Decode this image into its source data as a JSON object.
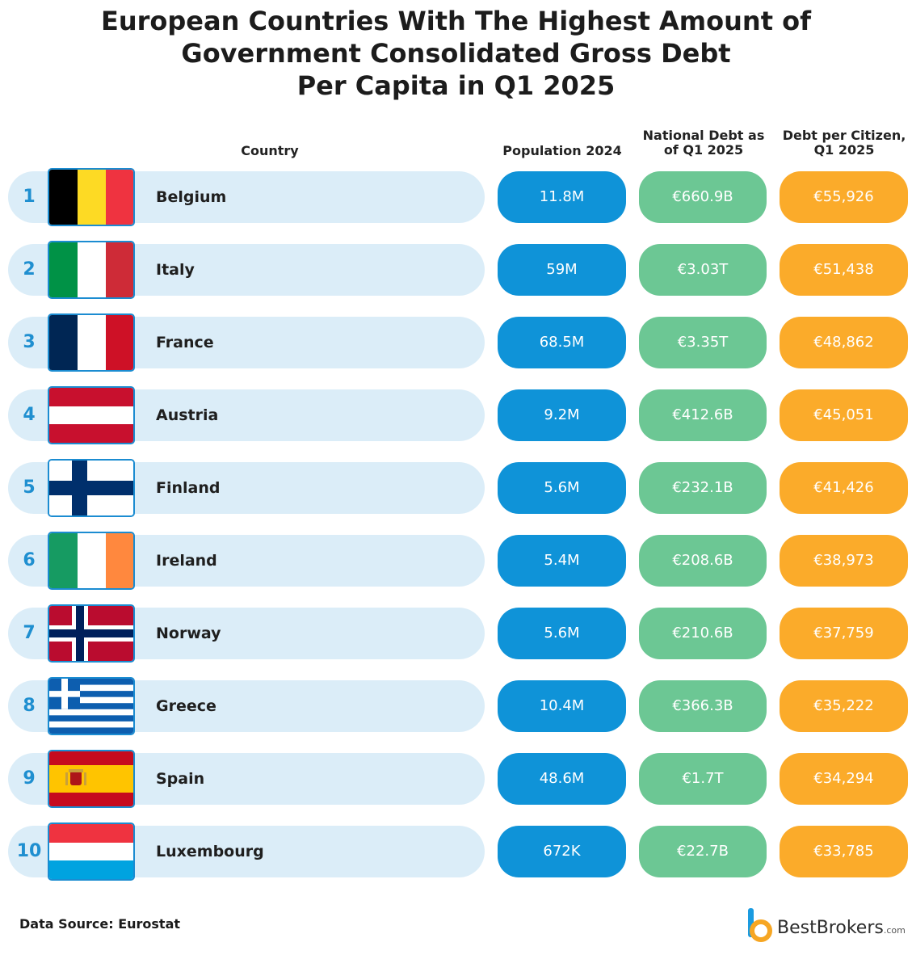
{
  "title_lines": [
    "European Countries With The Highest Amount of",
    "Government Consolidated Gross Debt",
    "Per Capita in Q1 2025"
  ],
  "headers": {
    "country": "Country",
    "population": "Population 2024",
    "debt_line1": "National Debt as",
    "debt_line2": "of Q1 2025",
    "citizen_line1": "Debt per Citizen,",
    "citizen_line2": "Q1 2025"
  },
  "chart_data": {
    "type": "table",
    "columns": [
      "Country",
      "Population 2024",
      "National Debt as of Q1 2025",
      "Debt per Citizen, Q1 2025"
    ],
    "rows": [
      {
        "rank": "1",
        "country": "Belgium",
        "population": "11.8M",
        "debt": "€660.9B",
        "per_citizen": "€55,926"
      },
      {
        "rank": "2",
        "country": "Italy",
        "population": "59M",
        "debt": "€3.03T",
        "per_citizen": "€51,438"
      },
      {
        "rank": "3",
        "country": "France",
        "population": "68.5M",
        "debt": "€3.35T",
        "per_citizen": "€48,862"
      },
      {
        "rank": "4",
        "country": "Austria",
        "population": "9.2M",
        "debt": "€412.6B",
        "per_citizen": "€45,051"
      },
      {
        "rank": "5",
        "country": "Finland",
        "population": "5.6M",
        "debt": "€232.1B",
        "per_citizen": "€41,426"
      },
      {
        "rank": "6",
        "country": "Ireland",
        "population": "5.4M",
        "debt": "€208.6B",
        "per_citizen": "€38,973"
      },
      {
        "rank": "7",
        "country": "Norway",
        "population": "5.6M",
        "debt": "€210.6B",
        "per_citizen": "€37,759"
      },
      {
        "rank": "8",
        "country": "Greece",
        "population": "10.4M",
        "debt": "€366.3B",
        "per_citizen": "€35,222"
      },
      {
        "rank": "9",
        "country": "Spain",
        "population": "48.6M",
        "debt": "€1.7T",
        "per_citizen": "€34,294"
      },
      {
        "rank": "10",
        "country": "Luxembourg",
        "population": "672K",
        "debt": "€22.7B",
        "per_citizen": "€33,785"
      }
    ]
  },
  "colors": {
    "row_bg": "#dbedf8",
    "population": "#0f93d8",
    "debt": "#6cc794",
    "per_citizen": "#fbab2a",
    "rank": "#1f8fd0"
  },
  "footer": {
    "source": "Data Source: Eurostat",
    "brand": "BestBrokers",
    "brand_suffix": ".com"
  }
}
